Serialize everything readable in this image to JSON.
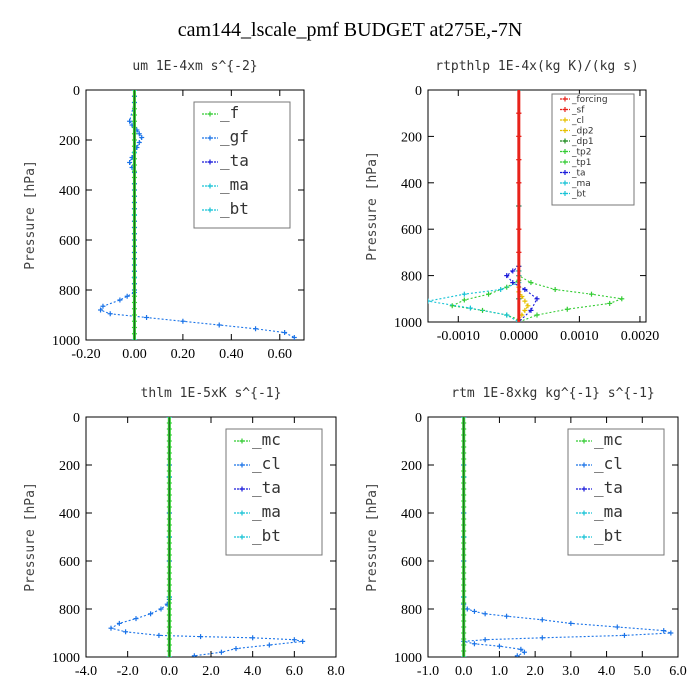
{
  "title": "cam144_lscale_pmf  BUDGET at275E,-7N",
  "colors": {
    "blue": "#1a73e8",
    "green": "#33cc33",
    "red": "#e8221a",
    "cyan": "#17c3d6",
    "lightgreen": "#7fe07f",
    "darkgreen": "#1e8b1e",
    "yellow": "#e6c000",
    "navy": "#1a1adb"
  },
  "chart_data": [
    {
      "type": "line",
      "title": "um   1E-4xm  s^{-2}",
      "ylabel": "Pressure [hPa]",
      "xlim": [
        -0.2,
        0.7
      ],
      "ylim": [
        0,
        1000
      ],
      "y_inverted": true,
      "xticks": [
        -0.2,
        0.0,
        0.2,
        0.4,
        0.6
      ],
      "xtick_labels": [
        "-0.20",
        "0.00",
        "0.20",
        "0.40",
        "0.60"
      ],
      "yticks": [
        0,
        200,
        400,
        600,
        800,
        1000
      ],
      "ytick_labels": [
        "0",
        "200",
        "400",
        "600",
        "800",
        "1000"
      ],
      "legend_position": "top-right",
      "legend_style": "big",
      "series": [
        {
          "name": "_f",
          "color": "#33cc33",
          "x": [
            0,
            0,
            0,
            0,
            0,
            0,
            0,
            0,
            0,
            0,
            0,
            0,
            0,
            0,
            0,
            0,
            0,
            0,
            0,
            0,
            0,
            0,
            0,
            0,
            0,
            0,
            0,
            0,
            0,
            0,
            0,
            0,
            0,
            0,
            0,
            0,
            0,
            0,
            0,
            0,
            0
          ],
          "y": [
            0,
            25,
            50,
            75,
            100,
            125,
            150,
            175,
            200,
            225,
            250,
            275,
            300,
            325,
            350,
            375,
            400,
            425,
            450,
            475,
            500,
            525,
            550,
            575,
            600,
            625,
            650,
            675,
            700,
            725,
            750,
            775,
            800,
            825,
            850,
            875,
            900,
            925,
            950,
            975,
            1000
          ]
        },
        {
          "name": "_gf",
          "color": "#1a73e8",
          "x": [
            0,
            0,
            0,
            -0.02,
            -0.01,
            0.01,
            0.02,
            0.03,
            0.02,
            0.01,
            0.0,
            -0.01,
            -0.02,
            -0.01,
            0,
            0,
            0,
            0,
            0,
            0,
            0,
            0,
            0,
            0,
            0,
            0,
            0,
            0,
            0,
            0,
            0,
            0,
            0,
            0,
            -0.03,
            -0.06,
            -0.13,
            -0.14,
            -0.1,
            0.05,
            0.2,
            0.35,
            0.5,
            0.62,
            0.66
          ],
          "y": [
            0,
            25,
            50,
            125,
            140,
            160,
            175,
            190,
            210,
            230,
            250,
            270,
            290,
            310,
            330,
            375,
            400,
            425,
            450,
            475,
            500,
            525,
            550,
            575,
            600,
            625,
            650,
            675,
            700,
            725,
            750,
            775,
            800,
            810,
            825,
            840,
            865,
            880,
            895,
            910,
            925,
            940,
            955,
            970,
            990
          ]
        },
        {
          "name": "_ta",
          "color": "#1a1adb",
          "x": [
            0,
            0,
            0,
            0,
            0
          ],
          "y": [
            0,
            250,
            500,
            750,
            1000
          ]
        },
        {
          "name": "_ma",
          "color": "#17c3d6",
          "x": [
            0,
            0,
            0,
            0,
            0
          ],
          "y": [
            0,
            250,
            500,
            750,
            1000
          ]
        },
        {
          "name": "_bt",
          "color": "#17c3d6",
          "x": [
            0,
            0,
            0,
            0,
            0
          ],
          "y": [
            0,
            250,
            500,
            750,
            1000
          ]
        }
      ]
    },
    {
      "type": "line",
      "title": "rtpthlp   1E-4x(kg K)/(kg s)",
      "ylabel": "Pressure [hPa]",
      "xlim": [
        -0.0015,
        0.0021
      ],
      "ylim": [
        0,
        1000
      ],
      "y_inverted": true,
      "xticks": [
        -0.001,
        0.0,
        0.001,
        0.002
      ],
      "xtick_labels": [
        "-0.0010",
        "0.0000",
        "0.0010",
        "0.0020"
      ],
      "yticks": [
        0,
        200,
        400,
        600,
        800,
        1000
      ],
      "ytick_labels": [
        "0",
        "200",
        "400",
        "600",
        "800",
        "1000"
      ],
      "legend_position": "top-right",
      "legend_style": "small",
      "series": [
        {
          "name": "_forcing",
          "color": "#e8221a",
          "x": [
            0,
            0,
            0,
            0,
            0,
            0,
            0,
            0,
            0,
            0,
            0
          ],
          "y": [
            0,
            100,
            200,
            300,
            400,
            500,
            600,
            700,
            800,
            900,
            1000
          ]
        },
        {
          "name": "_sf",
          "color": "#e8221a",
          "x": [
            0,
            0,
            0,
            0,
            0,
            0,
            0,
            0,
            0,
            0,
            0
          ],
          "y": [
            0,
            100,
            200,
            300,
            400,
            500,
            600,
            700,
            800,
            900,
            1000
          ]
        },
        {
          "name": "_cl",
          "color": "#e6c000",
          "x": [
            0,
            0,
            0,
            0,
            5e-05,
            0.0001,
            0.00015,
            0.0001,
            5e-05,
            0,
            0
          ],
          "y": [
            0,
            800,
            850,
            870,
            890,
            910,
            930,
            950,
            970,
            990,
            1000
          ]
        },
        {
          "name": "_dp2",
          "color": "#e6c000",
          "x": [
            0,
            0,
            0,
            0
          ],
          "y": [
            0,
            500,
            900,
            1000
          ]
        },
        {
          "name": "_dp1",
          "color": "#1e8b1e",
          "x": [
            0,
            0,
            0,
            0
          ],
          "y": [
            0,
            500,
            900,
            1000
          ]
        },
        {
          "name": "_tp2",
          "color": "#33cc33",
          "x": [
            0,
            0,
            0,
            -0.0002,
            -0.0005,
            -0.0009,
            -0.0011,
            -0.0006,
            -0.0002,
            0,
            0
          ],
          "y": [
            0,
            780,
            820,
            850,
            880,
            905,
            930,
            950,
            970,
            990,
            1000
          ]
        },
        {
          "name": "_tp1",
          "color": "#33cc33",
          "x": [
            0,
            0,
            0,
            0.0002,
            0.0006,
            0.0012,
            0.0017,
            0.0015,
            0.0008,
            0.0003,
            0
          ],
          "y": [
            0,
            760,
            800,
            830,
            860,
            880,
            900,
            920,
            945,
            970,
            1000
          ]
        },
        {
          "name": "_ta",
          "color": "#1a1adb",
          "x": [
            0,
            0,
            -0.0001,
            -0.0002,
            -0.0001,
            0.0001,
            0.0003,
            0.0002,
            0
          ],
          "y": [
            0,
            760,
            780,
            800,
            830,
            860,
            900,
            950,
            1000
          ]
        },
        {
          "name": "_ma",
          "color": "#17c3d6",
          "x": [
            0,
            0,
            0,
            0,
            -0.0003,
            -0.0009,
            -0.0015,
            -0.0008,
            -0.0002,
            0
          ],
          "y": [
            0,
            780,
            800,
            830,
            860,
            880,
            910,
            940,
            970,
            1000
          ]
        },
        {
          "name": "_bt",
          "color": "#17c3d6",
          "x": [
            0,
            0,
            0,
            0
          ],
          "y": [
            0,
            500,
            900,
            1000
          ]
        }
      ]
    },
    {
      "type": "line",
      "title": "thlm   1E-5xK  s^{-1}",
      "ylabel": "Pressure [hPa]",
      "xlim": [
        -4.0,
        8.0
      ],
      "ylim": [
        0,
        1000
      ],
      "y_inverted": true,
      "xticks": [
        -4.0,
        -2.0,
        0.0,
        2.0,
        4.0,
        6.0,
        8.0
      ],
      "xtick_labels": [
        "-4.0",
        "-2.0",
        "0.0",
        "2.0",
        "4.0",
        "6.0",
        "8.0"
      ],
      "yticks": [
        0,
        200,
        400,
        600,
        800,
        1000
      ],
      "ytick_labels": [
        "0",
        "200",
        "400",
        "600",
        "800",
        "1000"
      ],
      "legend_position": "top-right",
      "legend_style": "big",
      "series": [
        {
          "name": "_mc",
          "color": "#33cc33",
          "x": [
            0,
            0,
            0,
            0,
            0,
            0,
            0,
            0,
            0,
            0,
            0,
            0,
            0,
            0,
            0,
            0,
            0,
            0,
            0,
            0,
            0,
            0,
            0,
            0,
            0,
            0,
            0,
            0,
            0,
            0,
            0,
            0,
            0,
            0,
            0,
            0,
            0,
            0,
            0,
            0,
            0
          ],
          "y": [
            0,
            25,
            50,
            75,
            100,
            125,
            150,
            175,
            200,
            225,
            250,
            275,
            300,
            325,
            350,
            375,
            400,
            425,
            450,
            475,
            500,
            525,
            550,
            575,
            600,
            625,
            650,
            675,
            700,
            725,
            750,
            775,
            800,
            825,
            850,
            875,
            900,
            925,
            950,
            975,
            1000
          ]
        },
        {
          "name": "_cl",
          "color": "#1a73e8",
          "x": [
            0,
            0,
            0,
            0,
            0,
            -0.1,
            -0.4,
            -0.9,
            -1.6,
            -2.4,
            -2.8,
            -2.1,
            -0.5,
            1.5,
            4.0,
            6.0,
            6.4,
            4.8,
            3.2,
            2.5,
            1.2
          ],
          "y": [
            0,
            200,
            400,
            600,
            760,
            780,
            800,
            820,
            840,
            860,
            880,
            895,
            910,
            915,
            920,
            928,
            935,
            950,
            965,
            980,
            995
          ]
        },
        {
          "name": "_ta",
          "color": "#1a1adb",
          "x": [
            0,
            0,
            0,
            0,
            0
          ],
          "y": [
            0,
            250,
            500,
            750,
            1000
          ]
        },
        {
          "name": "_ma",
          "color": "#17c3d6",
          "x": [
            0,
            0,
            0,
            0,
            0
          ],
          "y": [
            0,
            250,
            500,
            750,
            1000
          ]
        },
        {
          "name": "_bt",
          "color": "#17c3d6",
          "x": [
            0,
            0,
            0,
            0,
            0
          ],
          "y": [
            0,
            250,
            500,
            750,
            1000
          ]
        }
      ]
    },
    {
      "type": "line",
      "title": "rtm   1E-8xkg  kg^{-1}  s^{-1}",
      "ylabel": "Pressure [hPa]",
      "xlim": [
        -1.0,
        6.0
      ],
      "ylim": [
        0,
        1000
      ],
      "y_inverted": true,
      "xticks": [
        -1.0,
        0.0,
        1.0,
        2.0,
        3.0,
        4.0,
        5.0,
        6.0
      ],
      "xtick_labels": [
        "-1.0",
        "0.0",
        "1.0",
        "2.0",
        "3.0",
        "4.0",
        "5.0",
        "6.0"
      ],
      "yticks": [
        0,
        200,
        400,
        600,
        800,
        1000
      ],
      "ytick_labels": [
        "0",
        "200",
        "400",
        "600",
        "800",
        "1000"
      ],
      "legend_position": "top-right",
      "legend_style": "big",
      "series": [
        {
          "name": "_mc",
          "color": "#33cc33",
          "x": [
            0,
            0,
            0,
            0,
            0,
            0,
            0,
            0,
            0,
            0,
            0,
            0,
            0,
            0,
            0,
            0,
            0,
            0,
            0,
            0,
            0,
            0,
            0,
            0,
            0,
            0,
            0,
            0,
            0,
            0,
            0,
            0,
            0,
            0,
            0,
            0,
            0,
            0,
            0,
            0,
            0
          ],
          "y": [
            0,
            25,
            50,
            75,
            100,
            125,
            150,
            175,
            200,
            225,
            250,
            275,
            300,
            325,
            350,
            375,
            400,
            425,
            450,
            475,
            500,
            525,
            550,
            575,
            600,
            625,
            650,
            675,
            700,
            725,
            750,
            775,
            800,
            825,
            850,
            875,
            900,
            925,
            950,
            975,
            1000
          ]
        },
        {
          "name": "_cl",
          "color": "#1a73e8",
          "x": [
            0,
            0,
            0,
            0,
            0,
            0.1,
            0.3,
            0.6,
            1.2,
            2.2,
            3.0,
            4.3,
            5.6,
            5.8,
            4.5,
            2.2,
            0.6,
            0.0,
            0.3,
            1.0,
            1.6,
            1.7,
            1.5
          ],
          "y": [
            0,
            200,
            400,
            600,
            780,
            800,
            810,
            820,
            830,
            845,
            860,
            875,
            890,
            900,
            910,
            920,
            928,
            935,
            945,
            955,
            968,
            980,
            995
          ]
        },
        {
          "name": "_ta",
          "color": "#1a1adb",
          "x": [
            0,
            0,
            0,
            0,
            0
          ],
          "y": [
            0,
            250,
            500,
            750,
            1000
          ]
        },
        {
          "name": "_ma",
          "color": "#17c3d6",
          "x": [
            0,
            0,
            0,
            0,
            0
          ],
          "y": [
            0,
            250,
            500,
            750,
            1000
          ]
        },
        {
          "name": "_bt",
          "color": "#17c3d6",
          "x": [
            0,
            0,
            0,
            0,
            0
          ],
          "y": [
            0,
            250,
            500,
            750,
            1000
          ]
        }
      ]
    }
  ]
}
